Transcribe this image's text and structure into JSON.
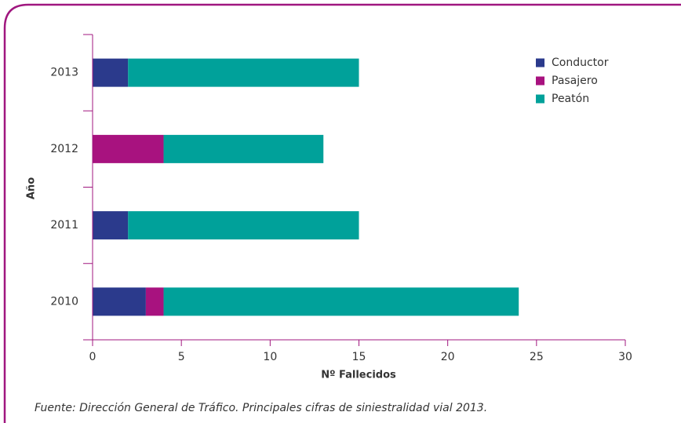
{
  "chart_data": {
    "type": "stacked-barh",
    "x_label": "Nº Fallecidos",
    "y_label": "Año",
    "source": "Fuente: Dirección General de Tráfico. Principales cifras de siniestralidad vial 2013.",
    "categories": [
      "2010",
      "2011",
      "2012",
      "2013"
    ],
    "series": [
      {
        "name": "Conductor",
        "color": "#2b3a8c",
        "values": [
          3,
          2,
          0,
          2
        ]
      },
      {
        "name": "Pasajero",
        "color": "#a8127f",
        "values": [
          1,
          0,
          4,
          0
        ]
      },
      {
        "name": "Peatón",
        "color": "#00a19a",
        "values": [
          20,
          13,
          9,
          13
        ]
      }
    ],
    "xlim": [
      0,
      30
    ],
    "xticks": [
      0,
      5,
      10,
      15,
      20,
      25,
      30
    ],
    "legend": "upper right"
  }
}
